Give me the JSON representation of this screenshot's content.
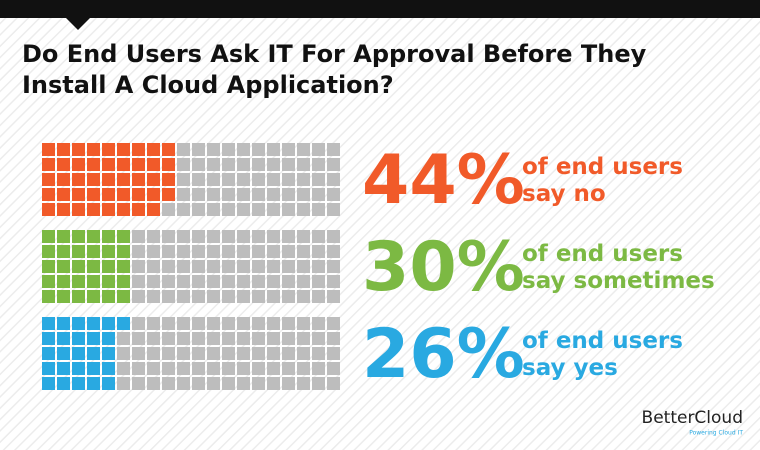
{
  "chart_data": {
    "type": "waffle",
    "title": "Do End Users Ask IT For Approval Before They Install A Cloud Application?",
    "series": [
      {
        "name": "say no",
        "intro": "of end users",
        "color": "#f15a29",
        "values": [
          44
        ],
        "value_labels": [
          "44%"
        ]
      },
      {
        "name": "say sometimes",
        "intro": "of end users",
        "color": "#7cb943",
        "values": [
          30
        ],
        "value_labels": [
          "30%"
        ]
      },
      {
        "name": "say yes",
        "intro": "of end users",
        "color": "#29a9e1",
        "values": [
          26
        ],
        "value_labels": [
          "26%"
        ]
      }
    ]
  },
  "logo": {
    "name": "BetterCloud",
    "tagline": "Powering Cloud IT"
  }
}
